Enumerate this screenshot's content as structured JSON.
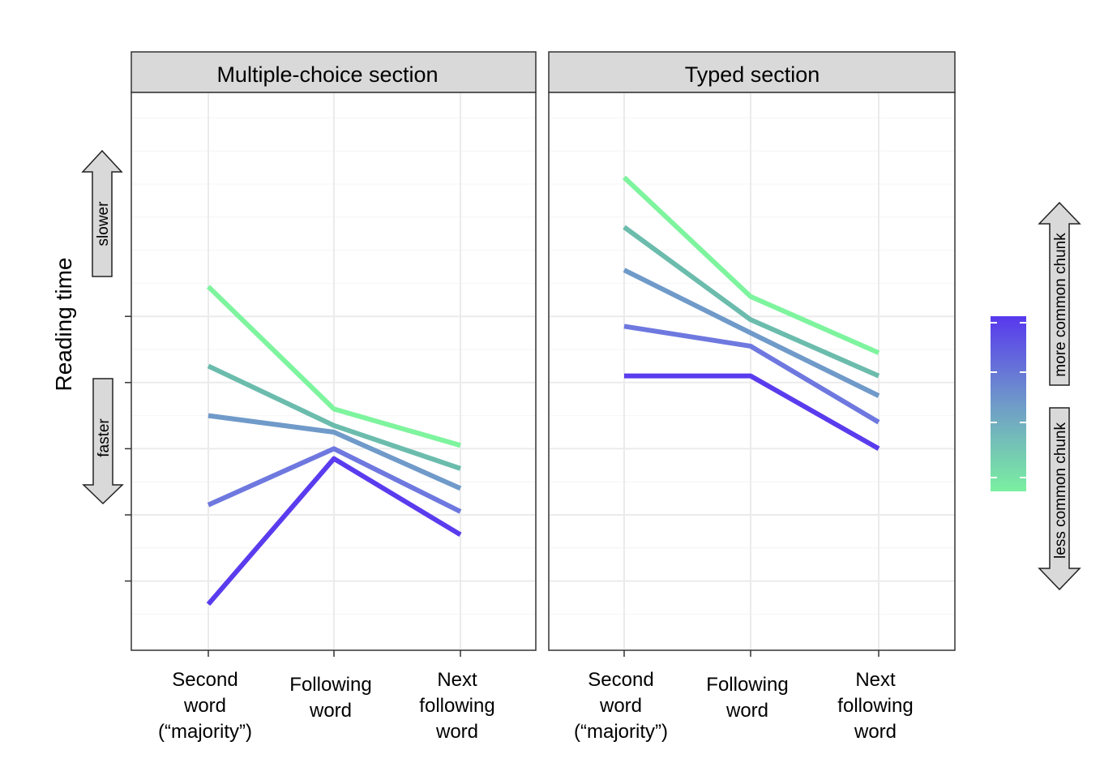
{
  "chart_data": {
    "type": "line",
    "ylabel": "Reading time",
    "y_direction": {
      "up": "slower",
      "down": "faster"
    },
    "categories": [
      "Second word (“majority”)",
      "Following word",
      "Next following word"
    ],
    "category_lines": [
      [
        "Second",
        "word",
        "(“majority”)"
      ],
      [
        "Following",
        "word"
      ],
      [
        "Next",
        "following",
        "word"
      ]
    ],
    "ylim": [
      0,
      100
    ],
    "yticks": [
      5,
      25,
      45,
      65,
      85
    ],
    "grid": true,
    "legend": {
      "type": "colorbar",
      "position": "right",
      "top_label": "more common chunk",
      "bottom_label": "less common chunk",
      "top_color": "#5838ee",
      "bottom_color": "#7af0a0"
    },
    "colors": [
      "#5a3cee",
      "#6e78df",
      "#6f9ac9",
      "#6bbcac",
      "#7ef49e"
    ],
    "panels": [
      {
        "title": "Multiple-choice section",
        "series": [
          {
            "values": [
              -2,
              42,
              19
            ]
          },
          {
            "values": [
              28,
              45,
              26
            ]
          },
          {
            "values": [
              55,
              50,
              33
            ]
          },
          {
            "values": [
              70,
              52,
              39
            ]
          },
          {
            "values": [
              94,
              57,
              46
            ]
          }
        ]
      },
      {
        "title": "Typed section",
        "series": [
          {
            "values": [
              67,
              67,
              45
            ]
          },
          {
            "values": [
              82,
              76,
              53
            ]
          },
          {
            "values": [
              99,
              80,
              61
            ]
          },
          {
            "values": [
              112,
              84,
              67
            ]
          },
          {
            "values": [
              127,
              91,
              74
            ]
          }
        ]
      }
    ]
  }
}
